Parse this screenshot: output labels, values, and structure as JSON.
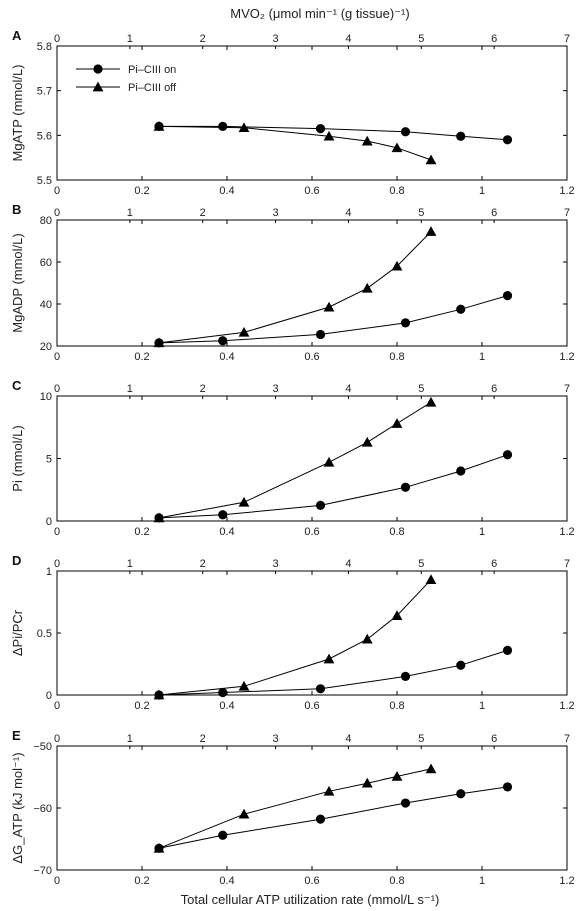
{
  "top_axis_label": "MVO₂ (μmol min⁻¹ (g tissue)⁻¹)",
  "bottom_axis_label": "Total cellular ATP utilization rate (mmol/L s⁻¹)",
  "legend": [
    {
      "label": "Pi–CIII on",
      "marker": "circle"
    },
    {
      "label": "Pi–CIII off",
      "marker": "triangle"
    }
  ],
  "chart_data": [
    {
      "type": "line",
      "panel": "A",
      "ylabel": "MgATP (mmol/L)",
      "xlim": [
        0,
        1.2
      ],
      "x2lim": [
        0,
        7
      ],
      "ylim": [
        5.5,
        5.8
      ],
      "xticks": [
        "0",
        "0.2",
        "0.4",
        "0.6",
        "0.8",
        "1",
        "1.2"
      ],
      "x2ticks": [
        "0",
        "1",
        "2",
        "3",
        "4",
        "5",
        "6",
        "7"
      ],
      "yticks": [
        "5.5",
        "5.6",
        "5.7",
        "5.8"
      ],
      "series": [
        {
          "name": "Pi–CIII on",
          "x": [
            0.24,
            0.39,
            0.62,
            0.82,
            0.95,
            1.06
          ],
          "y": [
            5.62,
            5.62,
            5.615,
            5.608,
            5.598,
            5.59
          ]
        },
        {
          "name": "Pi–CIII off",
          "x": [
            0.24,
            0.44,
            0.64,
            0.73,
            0.8,
            0.88
          ],
          "y": [
            5.62,
            5.617,
            5.598,
            5.587,
            5.572,
            5.545
          ]
        }
      ]
    },
    {
      "type": "line",
      "panel": "B",
      "ylabel": "MgADP (mmol/L)",
      "xlim": [
        0,
        1.2
      ],
      "x2lim": [
        0,
        7
      ],
      "ylim": [
        20,
        80
      ],
      "xticks": [
        "0",
        "0.2",
        "0.4",
        "0.6",
        "0.8",
        "1",
        "1.2"
      ],
      "x2ticks": [
        "0",
        "1",
        "2",
        "3",
        "4",
        "5",
        "6",
        "7"
      ],
      "yticks": [
        "20",
        "40",
        "60",
        "80"
      ],
      "series": [
        {
          "name": "Pi–CIII on",
          "x": [
            0.24,
            0.39,
            0.62,
            0.82,
            0.95,
            1.06
          ],
          "y": [
            21.5,
            22.5,
            25.5,
            31,
            37.5,
            44
          ]
        },
        {
          "name": "Pi–CIII off",
          "x": [
            0.24,
            0.44,
            0.64,
            0.73,
            0.8,
            0.88
          ],
          "y": [
            21.5,
            26.5,
            38.5,
            47.5,
            58,
            74.5
          ]
        }
      ]
    },
    {
      "type": "line",
      "panel": "C",
      "ylabel": "Pi (mmol/L)",
      "xlim": [
        0,
        1.2
      ],
      "x2lim": [
        0,
        7
      ],
      "ylim": [
        0,
        10
      ],
      "xticks": [
        "0",
        "0.2",
        "0.4",
        "0.6",
        "0.8",
        "1",
        "1.2"
      ],
      "x2ticks": [
        "0",
        "1",
        "2",
        "3",
        "4",
        "5",
        "6",
        "7"
      ],
      "yticks": [
        "0",
        "5",
        "10"
      ],
      "series": [
        {
          "name": "Pi–CIII on",
          "x": [
            0.24,
            0.39,
            0.62,
            0.82,
            0.95,
            1.06
          ],
          "y": [
            0.25,
            0.5,
            1.25,
            2.7,
            4.0,
            5.3
          ]
        },
        {
          "name": "Pi–CIII off",
          "x": [
            0.24,
            0.44,
            0.64,
            0.73,
            0.8,
            0.88
          ],
          "y": [
            0.25,
            1.5,
            4.7,
            6.3,
            7.8,
            9.5
          ]
        }
      ]
    },
    {
      "type": "line",
      "panel": "D",
      "ylabel": "ΔPi/PCr",
      "xlim": [
        0,
        1.2
      ],
      "x2lim": [
        0,
        7
      ],
      "ylim": [
        0,
        1
      ],
      "xticks": [
        "0",
        "0.2",
        "0.4",
        "0.6",
        "0.8",
        "1",
        "1.2"
      ],
      "x2ticks": [
        "0",
        "1",
        "2",
        "3",
        "4",
        "5",
        "6",
        "7"
      ],
      "yticks": [
        "0",
        "0.5",
        "1"
      ],
      "series": [
        {
          "name": "Pi–CIII on",
          "x": [
            0.24,
            0.39,
            0.62,
            0.82,
            0.95,
            1.06
          ],
          "y": [
            0.0,
            0.02,
            0.05,
            0.15,
            0.24,
            0.36
          ]
        },
        {
          "name": "Pi–CIII off",
          "x": [
            0.24,
            0.44,
            0.64,
            0.73,
            0.8,
            0.88
          ],
          "y": [
            0.0,
            0.07,
            0.29,
            0.45,
            0.64,
            0.93
          ]
        }
      ]
    },
    {
      "type": "line",
      "panel": "E",
      "ylabel": "ΔG_ATP (kJ mol⁻¹)",
      "xlim": [
        0,
        1.2
      ],
      "x2lim": [
        0,
        7
      ],
      "ylim": [
        -70,
        -50
      ],
      "xticks": [
        "0",
        "0.2",
        "0.4",
        "0.6",
        "0.8",
        "1",
        "1.2"
      ],
      "x2ticks": [
        "0",
        "1",
        "2",
        "3",
        "4",
        "5",
        "6",
        "7"
      ],
      "yticks": [
        "-70",
        "-60",
        "-50"
      ],
      "series": [
        {
          "name": "Pi–CIII on",
          "x": [
            0.24,
            0.39,
            0.62,
            0.82,
            0.95,
            1.06
          ],
          "y": [
            -66.5,
            -64.4,
            -61.8,
            -59.2,
            -57.7,
            -56.6
          ]
        },
        {
          "name": "Pi–CIII off",
          "x": [
            0.24,
            0.44,
            0.64,
            0.73,
            0.8,
            0.88
          ],
          "y": [
            -66.5,
            -61.0,
            -57.3,
            -56.0,
            -54.9,
            -53.7
          ]
        }
      ]
    }
  ]
}
